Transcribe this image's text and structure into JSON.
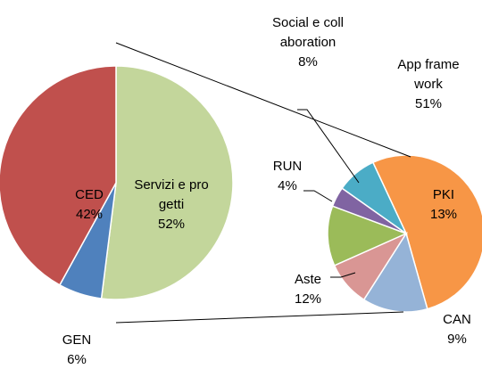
{
  "chart_data": [
    {
      "type": "pie",
      "categories": [
        "Servizi e progetti",
        "GEN",
        "CED"
      ],
      "values": [
        52,
        6,
        42
      ],
      "value_labels": [
        "52%",
        "6%",
        "42%"
      ],
      "colors": [
        "#c3d69b",
        "#4f81bd",
        "#c0504d"
      ]
    },
    {
      "type": "pie",
      "categories": [
        "App framework",
        "PKI",
        "CAN",
        "Aste",
        "RUN",
        "Social e collaboration"
      ],
      "values": [
        51,
        13,
        9,
        12,
        4,
        8
      ],
      "value_labels": [
        "51%",
        "13%",
        "9%",
        "12%",
        "4%",
        "8%"
      ],
      "colors": [
        "#f79646",
        "#95b3d7",
        "#d99694",
        "#9bbb59",
        "#8064a2",
        "#4bacc6"
      ]
    }
  ]
}
